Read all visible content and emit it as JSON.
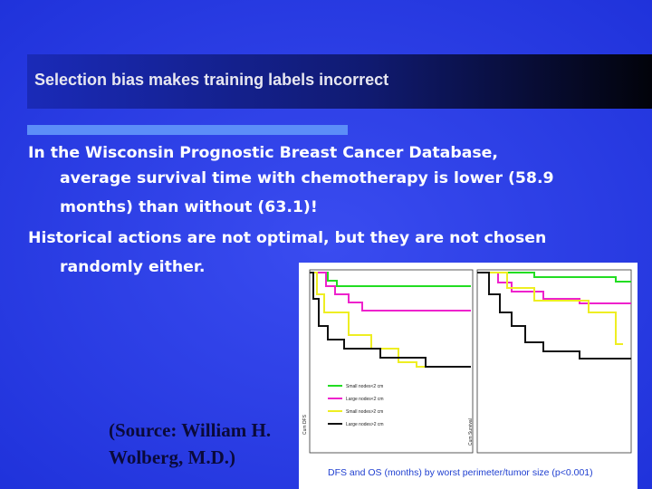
{
  "slide": {
    "title": "Selection bias makes training labels incorrect",
    "body": [
      [
        "In the Wisconsin Prognostic Breast Cancer Database,",
        "average survival time with chemotherapy is lower (58.9",
        "months) than without (63.1)!"
      ],
      [
        "Historical actions are not optimal, but they are not chosen",
        "randomly either."
      ]
    ],
    "source": [
      "(Source: William H.",
      "Wolberg, M.D.)"
    ],
    "figure": {
      "left_ylabel": "Cum DFS",
      "right_ylabel": "Cum Survival",
      "legend": [
        "Small nodes<2 cm",
        "Large nodes<2 cm",
        "Small nodes>2 cm",
        "Large nodes>2 cm"
      ],
      "caption": "DFS and OS (months) by worst perimeter/tumor size (p<0.001)"
    }
  }
}
